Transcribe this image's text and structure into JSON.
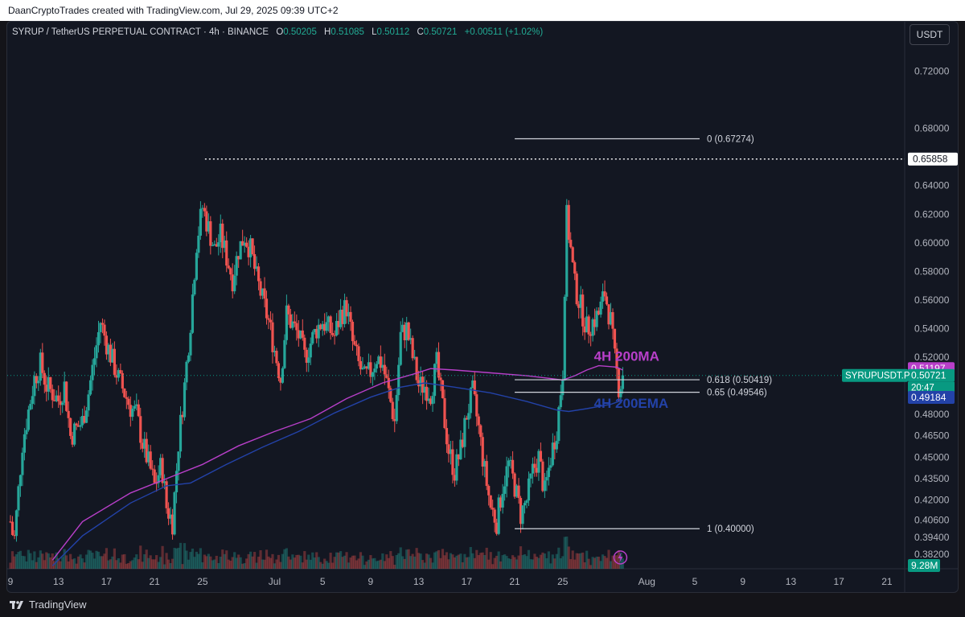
{
  "header": {
    "attribution": "DaanCryptoTrades created with TradingView.com, Jul 29, 2025 09:39 UTC+2"
  },
  "legend": {
    "symbol": "SYRUP / TetherUS PERPETUAL CONTRACT · 4h · BINANCE",
    "o_label": "O",
    "o_value": "0.50205",
    "h_label": "H",
    "h_value": "0.51085",
    "l_label": "L",
    "l_value": "0.50112",
    "c_label": "C",
    "c_value": "0.50721",
    "change": "+0.00511 (+1.02%)"
  },
  "currency_button": "USDT",
  "footer": {
    "brand": "TradingView"
  },
  "colors": {
    "up": "#26a69a",
    "down": "#ef5350",
    "ma": "#b83fc9",
    "ema": "#2342a8",
    "background": "#131722",
    "text": "#d1d4dc"
  },
  "chart_data": {
    "type": "candlestick",
    "ylim": [
      0.372,
      0.74
    ],
    "y_ticks": [
      "0.72000",
      "0.68000",
      "0.64000",
      "0.62000",
      "0.60000",
      "0.58000",
      "0.56000",
      "0.54000",
      "0.52000",
      "0.48000",
      "0.46500",
      "0.45000",
      "0.43500",
      "0.42000",
      "0.40600",
      "0.39400",
      "0.38200"
    ],
    "x_ticks": [
      {
        "label": "9",
        "t": 0
      },
      {
        "label": "13",
        "t": 4
      },
      {
        "label": "17",
        "t": 8
      },
      {
        "label": "21",
        "t": 12
      },
      {
        "label": "25",
        "t": 16
      },
      {
        "label": "Jul",
        "t": 22
      },
      {
        "label": "5",
        "t": 26
      },
      {
        "label": "9",
        "t": 30
      },
      {
        "label": "13",
        "t": 34
      },
      {
        "label": "17",
        "t": 38
      },
      {
        "label": "21",
        "t": 42
      },
      {
        "label": "25",
        "t": 46
      },
      {
        "label": "Aug",
        "t": 53
      },
      {
        "label": "5",
        "t": 57
      },
      {
        "label": "9",
        "t": 61
      },
      {
        "label": "13",
        "t": 65
      },
      {
        "label": "17",
        "t": 69
      },
      {
        "label": "21",
        "t": 73
      }
    ],
    "anchors": [
      [
        0,
        0.405
      ],
      [
        0.3,
        0.39
      ],
      [
        1,
        0.46
      ],
      [
        2,
        0.505
      ],
      [
        2.5,
        0.515
      ],
      [
        3,
        0.5
      ],
      [
        4,
        0.49
      ],
      [
        4.5,
        0.5
      ],
      [
        5,
        0.465
      ],
      [
        6,
        0.475
      ],
      [
        6.5,
        0.495
      ],
      [
        7,
        0.52
      ],
      [
        7.5,
        0.545
      ],
      [
        8,
        0.53
      ],
      [
        9,
        0.505
      ],
      [
        10,
        0.485
      ],
      [
        10.5,
        0.48
      ],
      [
        11,
        0.46
      ],
      [
        11.7,
        0.44
      ],
      [
        12,
        0.43
      ],
      [
        12.6,
        0.445
      ],
      [
        13,
        0.415
      ],
      [
        13.5,
        0.405
      ],
      [
        14,
        0.46
      ],
      [
        14.5,
        0.5
      ],
      [
        15,
        0.545
      ],
      [
        15.5,
        0.6
      ],
      [
        16,
        0.625
      ],
      [
        16.5,
        0.61
      ],
      [
        17,
        0.595
      ],
      [
        17.5,
        0.605
      ],
      [
        18,
        0.59
      ],
      [
        18.5,
        0.575
      ],
      [
        19,
        0.595
      ],
      [
        19.5,
        0.605
      ],
      [
        20,
        0.595
      ],
      [
        20.5,
        0.575
      ],
      [
        21,
        0.56
      ],
      [
        21.5,
        0.545
      ],
      [
        22,
        0.525
      ],
      [
        22.5,
        0.505
      ],
      [
        23,
        0.55
      ],
      [
        24,
        0.535
      ],
      [
        24.5,
        0.52
      ],
      [
        25,
        0.53
      ],
      [
        25.5,
        0.54
      ],
      [
        26,
        0.545
      ],
      [
        27,
        0.535
      ],
      [
        27.5,
        0.55
      ],
      [
        28,
        0.555
      ],
      [
        28.5,
        0.53
      ],
      [
        29,
        0.515
      ],
      [
        29.5,
        0.505
      ],
      [
        30,
        0.51
      ],
      [
        30.5,
        0.52
      ],
      [
        31,
        0.515
      ],
      [
        31.5,
        0.495
      ],
      [
        32,
        0.475
      ],
      [
        32.5,
        0.535
      ],
      [
        33,
        0.54
      ],
      [
        33.5,
        0.52
      ],
      [
        34,
        0.5
      ],
      [
        34.5,
        0.5
      ],
      [
        35,
        0.495
      ],
      [
        35.5,
        0.515
      ],
      [
        36,
        0.485
      ],
      [
        36.5,
        0.455
      ],
      [
        37,
        0.44
      ],
      [
        37.5,
        0.455
      ],
      [
        38,
        0.48
      ],
      [
        38.5,
        0.495
      ],
      [
        39,
        0.47
      ],
      [
        39.5,
        0.44
      ],
      [
        40,
        0.415
      ],
      [
        40.5,
        0.405
      ],
      [
        41,
        0.43
      ],
      [
        41.5,
        0.445
      ],
      [
        42,
        0.43
      ],
      [
        42.5,
        0.41
      ],
      [
        43,
        0.42
      ],
      [
        43.5,
        0.44
      ],
      [
        44,
        0.45
      ],
      [
        44.5,
        0.425
      ],
      [
        45,
        0.45
      ],
      [
        45.5,
        0.47
      ],
      [
        46,
        0.51
      ],
      [
        46.3,
        0.62
      ],
      [
        46.6,
        0.6
      ],
      [
        47,
        0.57
      ],
      [
        47.5,
        0.555
      ],
      [
        48,
        0.54
      ],
      [
        48.5,
        0.545
      ],
      [
        49,
        0.55
      ],
      [
        49.5,
        0.565
      ],
      [
        50,
        0.545
      ],
      [
        50.3,
        0.52
      ],
      [
        50.7,
        0.498
      ],
      [
        51,
        0.507
      ]
    ],
    "ma_points": [
      [
        3.5,
        0.378
      ],
      [
        6,
        0.405
      ],
      [
        10,
        0.425
      ],
      [
        13,
        0.435
      ],
      [
        16,
        0.445
      ],
      [
        19,
        0.458
      ],
      [
        22,
        0.468
      ],
      [
        25,
        0.477
      ],
      [
        28,
        0.491
      ],
      [
        31,
        0.502
      ],
      [
        33.5,
        0.508
      ],
      [
        35,
        0.512
      ],
      [
        37,
        0.511
      ],
      [
        40,
        0.509
      ],
      [
        43,
        0.507
      ],
      [
        45,
        0.505
      ],
      [
        46,
        0.504
      ],
      [
        47,
        0.507
      ],
      [
        48,
        0.511
      ],
      [
        49,
        0.514
      ],
      [
        50.5,
        0.513
      ],
      [
        51,
        0.511
      ]
    ],
    "ema_points": [
      [
        3.5,
        0.374
      ],
      [
        6,
        0.395
      ],
      [
        10,
        0.418
      ],
      [
        13,
        0.43
      ],
      [
        15,
        0.432
      ],
      [
        18,
        0.445
      ],
      [
        21,
        0.457
      ],
      [
        24,
        0.468
      ],
      [
        27,
        0.481
      ],
      [
        30,
        0.492
      ],
      [
        32.5,
        0.499
      ],
      [
        34.5,
        0.502
      ],
      [
        37,
        0.499
      ],
      [
        40,
        0.495
      ],
      [
        43,
        0.489
      ],
      [
        45.5,
        0.483
      ],
      [
        46.5,
        0.482
      ],
      [
        48,
        0.484
      ],
      [
        50,
        0.487
      ],
      [
        51,
        0.49
      ]
    ],
    "max_line": {
      "value": 0.65858,
      "label": "0.65858"
    },
    "fib_levels": [
      {
        "ratio": "0",
        "value": 0.67274,
        "label": "0 (0.67274)"
      },
      {
        "ratio": "0.618",
        "value": 0.50419,
        "label": "0.618 (0.50419)"
      },
      {
        "ratio": "0.65",
        "value": 0.49546,
        "label": "0.65 (0.49546)"
      },
      {
        "ratio": "1",
        "value": 0.4,
        "label": "1 (0.40000)"
      }
    ],
    "annotations": [
      {
        "text": "4H 200MA",
        "color": "#b83fc9",
        "value": 0.5175,
        "t": 48.6
      },
      {
        "text": "4H 200EMA",
        "color": "#2342a8",
        "value": 0.4845,
        "t": 48.6
      }
    ],
    "price_badges": [
      {
        "text": "0.51197",
        "value": 0.51197,
        "bg": "#b83fc9",
        "fg": "#ffffff"
      },
      {
        "text": "0.50721",
        "value": 0.50721,
        "bg": "#089981",
        "fg": "#ffffff",
        "sub": "20:47",
        "symbol": "SYRUPUSDT.P"
      },
      {
        "text": "0.49184",
        "value": 0.49184,
        "bg": "#2342a8",
        "fg": "#ffffff"
      }
    ],
    "volume_label": "9.28M",
    "last_price": 0.50721
  }
}
